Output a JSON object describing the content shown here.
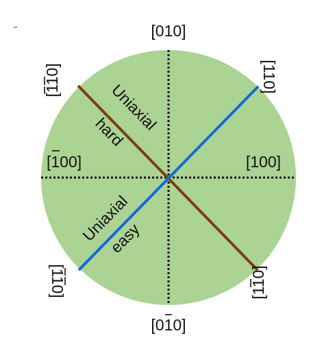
{
  "diagram": {
    "colors": {
      "disk_fill": "#abd394",
      "hard_axis": "#7a3f0f",
      "easy_axis": "#1368d8",
      "dotted_axis": "#111111",
      "text": "#111111"
    },
    "directions": {
      "top": "[010]",
      "bottom": "[010]",
      "left": "[100]",
      "right": "[100]",
      "upper_left": "[110]",
      "upper_right": "[110]",
      "lower_left": "[110]",
      "lower_right": "[110]"
    },
    "hard_label": {
      "line1": "Uniaxial",
      "line2": "hard"
    },
    "easy_label": {
      "line1": "Uniaxial",
      "line2": "easy"
    }
  }
}
